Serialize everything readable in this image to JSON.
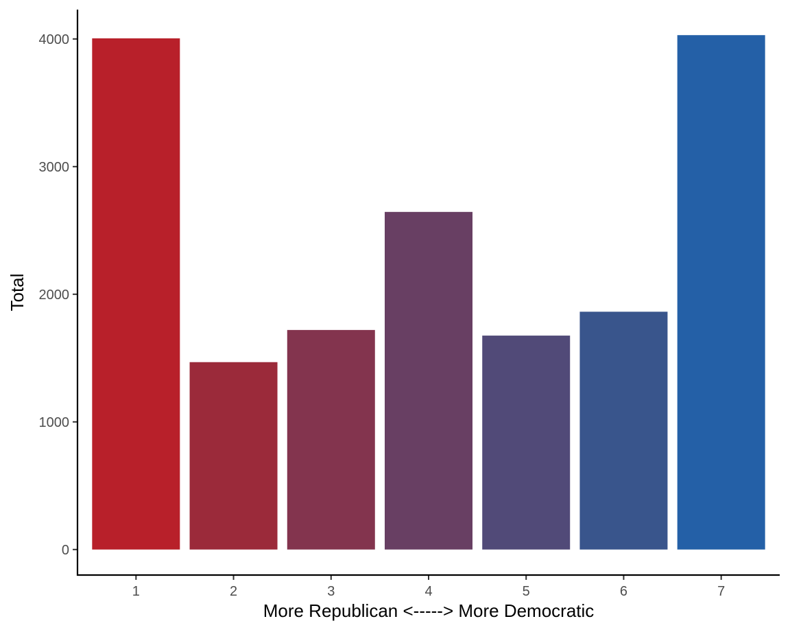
{
  "chart_data": {
    "type": "bar",
    "title": "",
    "xlabel": "More Republican <-----> More Democratic",
    "ylabel": "Total",
    "categories": [
      "1",
      "2",
      "3",
      "4",
      "5",
      "6",
      "7"
    ],
    "values": [
      4005,
      1468,
      1720,
      2645,
      1676,
      1863,
      4030
    ],
    "colors": [
      "#B8202A",
      "#9B2A3A",
      "#83344E",
      "#683F63",
      "#514A78",
      "#39558C",
      "#2460A7"
    ],
    "yticks": [
      0,
      1000,
      2000,
      3000,
      4000
    ],
    "ytick_labels": [
      "0",
      "1000",
      "2000",
      "3000",
      "4000"
    ],
    "ylim": [
      -200,
      4230
    ],
    "grid": false,
    "legend": "none"
  }
}
